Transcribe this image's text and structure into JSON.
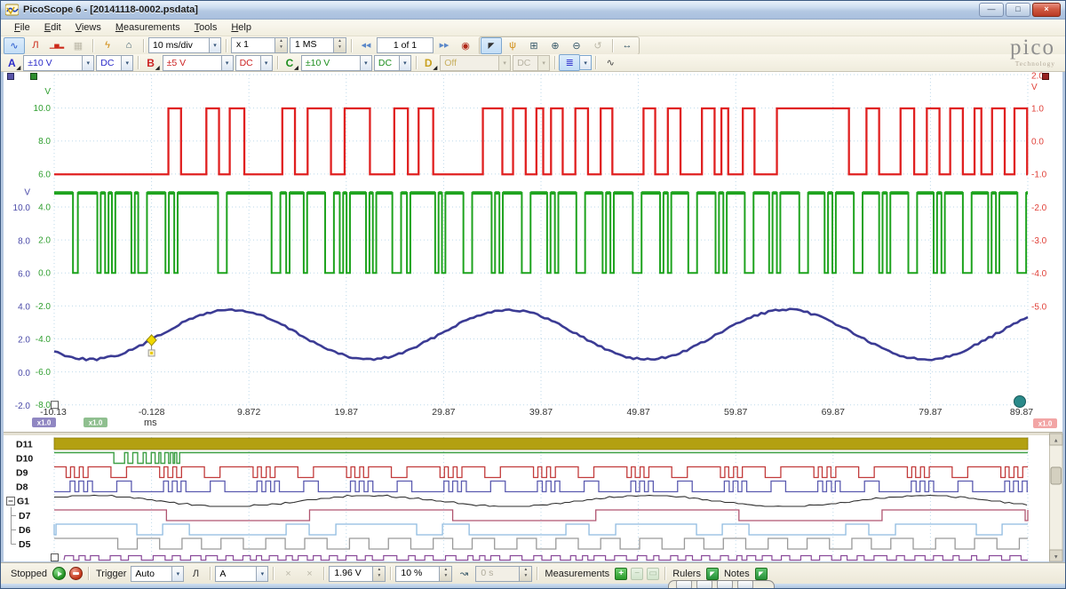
{
  "window": {
    "title": "PicoScope 6 - [20141118-0002.psdata]"
  },
  "brand": {
    "name": "pico",
    "sub": "Technology"
  },
  "menu": {
    "items": [
      "File",
      "Edit",
      "Views",
      "Measurements",
      "Tools",
      "Help"
    ]
  },
  "icons": {
    "scope_view": "∿",
    "persistence_view": "Л",
    "spectrum_view": "▁▅▂",
    "add_view": "▦",
    "connect_device": "ϟ",
    "home": "⌂",
    "prev_buffers": "◀◀",
    "next_buffers": "▶▶",
    "buffer_overview": "◉",
    "cursor": "◤",
    "hand": "ψ",
    "marquee_zoom": "⊞",
    "zoom_in": "⊕",
    "zoom_out": "⊖",
    "undo_zoom": "↺",
    "h_zoom": "↔",
    "digital_inputs": "≣",
    "signal_generator": "∿",
    "rising_edge": "Л",
    "wave_arrow": "↝",
    "ruler_tool": "×",
    "add": "+",
    "minus": "−",
    "box": "▭",
    "panel_open": "◤",
    "minimize": "—",
    "maximize": "□",
    "close": "×",
    "dropdown": "▾",
    "spin_up": "▴",
    "spin_down": "▾"
  },
  "toolbar": {
    "timebase": "10 ms/div",
    "zoom_factor": "x 1",
    "sample_count": "1 MS",
    "buffer_position": "1 of 1"
  },
  "channels": [
    {
      "id": "A",
      "range": "±10 V",
      "coupling": "DC",
      "color": "#2a2ac8",
      "enabled": true
    },
    {
      "id": "B",
      "range": "±5 V",
      "coupling": "DC",
      "color": "#cc2222",
      "enabled": true
    },
    {
      "id": "C",
      "range": "±10 V",
      "coupling": "DC",
      "color": "#1e8e1e",
      "enabled": true
    },
    {
      "id": "D",
      "range": "Off",
      "coupling": "DC",
      "color": "#c8a01e",
      "enabled": false
    }
  ],
  "statusbar": {
    "stopped_label": "Stopped",
    "trigger_label": "Trigger",
    "trigger_mode": "Auto",
    "trigger_source": "A",
    "trigger_level": "1.96 V",
    "pretrigger": "10 %",
    "post_trigger": "0 s",
    "measurements_label": "Measurements",
    "rulers_label": "Rulers",
    "notes_label": "Notes"
  },
  "chart_data": {
    "type": "line",
    "title": "",
    "x_unit": "ms",
    "x_range_ms": [
      -10.13,
      89.87
    ],
    "x_ticks": [
      "-10.13",
      "-0.128",
      "9.872",
      "19.87",
      "29.87",
      "39.87",
      "49.87",
      "59.87",
      "69.87",
      "79.87",
      "89.87"
    ],
    "grid": true,
    "y_axes": [
      {
        "id": "A",
        "unit": "V",
        "color": "#4a4aa8",
        "side": "left-outer",
        "ticks": [
          10,
          8,
          6,
          4,
          2,
          0,
          -2
        ]
      },
      {
        "id": "C",
        "unit": "V",
        "color": "#2e9e2e",
        "side": "left-inner",
        "ticks": [
          10,
          8,
          6,
          4,
          2,
          0,
          -2,
          -4,
          -6,
          -8
        ]
      },
      {
        "id": "B",
        "unit": "V",
        "color": "#e04038",
        "side": "right",
        "ticks": [
          2,
          1,
          0,
          -1,
          -2,
          -3,
          -4,
          -5
        ]
      }
    ],
    "zoom_badges": {
      "left": [
        "x1.0",
        "x1.0"
      ],
      "left_colors": [
        "#9087c2",
        "#8fbf8f"
      ],
      "right": "x1.0",
      "right_color": "#f2a5a5"
    },
    "series": [
      {
        "name": "Channel B",
        "axis": "B",
        "color": "#e02020",
        "kind": "pulse-high",
        "idle_v": -1,
        "high_v": 1,
        "pulses_ms": [
          [
            1.6,
            2.9
          ],
          [
            5.5,
            6.8
          ],
          [
            7.9,
            9.4
          ],
          [
            13.3,
            14.6
          ],
          [
            15.9,
            18.3
          ],
          [
            19.7,
            22.3
          ],
          [
            24.8,
            26.2
          ],
          [
            27.3,
            28.8
          ],
          [
            33.9,
            35.9
          ],
          [
            37.0,
            38.3
          ],
          [
            39.4,
            40.1
          ],
          [
            40.9,
            42.1
          ],
          [
            43.4,
            44.7
          ],
          [
            46.0,
            47.2
          ],
          [
            50.4,
            51.6
          ],
          [
            52.9,
            54.2
          ],
          [
            56.4,
            57.7
          ],
          [
            58.4,
            59.1
          ],
          [
            60.6,
            61.8
          ],
          [
            64.1,
            71.5
          ],
          [
            73.3,
            74.6
          ],
          [
            76.8,
            78.2
          ],
          [
            79.5,
            80.8
          ],
          [
            81.9,
            83.2
          ],
          [
            84.4,
            85.1
          ],
          [
            86.2,
            87.5
          ],
          [
            88.5,
            89.8
          ]
        ]
      },
      {
        "name": "Channel C",
        "axis": "C",
        "color": "#1ea31e",
        "kind": "pulse-low",
        "idle_v": 4.85,
        "low_v": 0,
        "low_pulses_ms": [
          [
            -8.2,
            0.5
          ],
          [
            -5.7,
            0.35
          ],
          [
            -4.9,
            0.35
          ],
          [
            -4.2,
            0.35
          ],
          [
            -2.2,
            0.35
          ],
          [
            -1.5,
            0.9
          ],
          [
            1.3,
            0.35
          ],
          [
            2.2,
            0.35
          ],
          [
            6.7,
            0.9
          ],
          [
            12.2,
            0.9
          ],
          [
            13.7,
            0.35
          ],
          [
            15.5,
            0.35
          ],
          [
            17.7,
            0.9
          ],
          [
            19.2,
            0.35
          ],
          [
            19.9,
            0.35
          ],
          [
            21.9,
            0.35
          ],
          [
            22.6,
            0.35
          ],
          [
            24.6,
            0.9
          ],
          [
            26.1,
            0.35
          ],
          [
            29.0,
            0.35
          ],
          [
            29.7,
            0.35
          ],
          [
            31.9,
            0.9
          ],
          [
            34.8,
            0.35
          ],
          [
            35.6,
            0.35
          ],
          [
            37.9,
            0.9
          ],
          [
            40.5,
            0.35
          ],
          [
            41.3,
            0.35
          ],
          [
            43.5,
            0.9
          ],
          [
            46.2,
            0.35
          ],
          [
            47.0,
            0.35
          ],
          [
            49.3,
            0.9
          ],
          [
            52.1,
            0.35
          ],
          [
            52.9,
            0.35
          ],
          [
            55.0,
            0.9
          ],
          [
            57.8,
            0.35
          ],
          [
            58.6,
            0.35
          ],
          [
            60.8,
            0.9
          ],
          [
            63.3,
            0.35
          ],
          [
            64.1,
            0.35
          ],
          [
            66.4,
            0.9
          ],
          [
            69.0,
            0.35
          ],
          [
            69.8,
            0.35
          ],
          [
            72.0,
            0.9
          ],
          [
            74.6,
            0.35
          ],
          [
            75.4,
            0.35
          ],
          [
            77.6,
            0.9
          ],
          [
            80.2,
            0.35
          ],
          [
            81.0,
            0.35
          ],
          [
            83.2,
            0.9
          ],
          [
            85.8,
            0.35
          ],
          [
            86.6,
            0.35
          ],
          [
            88.8,
            0.9
          ]
        ]
      },
      {
        "name": "Channel A",
        "axis": "A",
        "color": "#3b3b94",
        "kind": "sine",
        "offset_v": 2.3,
        "amplitude_v": 1.5,
        "period_ms": 28.56,
        "rising_zero_ms": 0.82
      }
    ],
    "trigger": {
      "source": "A",
      "time_ms": -0.13,
      "level_v": 1.96,
      "marker_color": "#f0d800"
    }
  },
  "digital": {
    "channels": [
      {
        "label": "D11",
        "color": "#b3a011",
        "render": "band"
      },
      {
        "label": "D10",
        "color": "#3fa046",
        "render": "burst",
        "burst_ms": [
          -4.0,
          3.0
        ]
      },
      {
        "label": "D9",
        "color": "#c23b3b",
        "render": "pulses",
        "idle": "high",
        "period_ms": 9.6,
        "phase_ms": -8.9,
        "motif": [
          [
            0,
            0.45
          ],
          [
            0.85,
            0.5
          ],
          [
            1.75,
            0.5
          ],
          [
            4.6,
            1.6
          ]
        ]
      },
      {
        "label": "D8",
        "color": "#5b5bb0",
        "render": "pulses",
        "idle": "low",
        "period_ms": 9.6,
        "phase_ms": -8.5,
        "motif": [
          [
            0,
            0.5
          ],
          [
            0.9,
            0.5
          ],
          [
            1.8,
            0.5
          ],
          [
            4.8,
            1.5
          ]
        ]
      },
      {
        "label": "G1",
        "color": "#2b2b2b",
        "render": "analog",
        "group": true,
        "period_ms": 28.56,
        "phase_ms": 0.82
      },
      {
        "label": "D7",
        "color": "#b05570",
        "render": "pulses",
        "indent": true,
        "idle": "high",
        "period_ms": 29.4,
        "phase_ms": 1.4,
        "motif": [
          [
            0,
            14.7
          ]
        ]
      },
      {
        "label": "D6",
        "color": "#8fbbe0",
        "render": "pulses",
        "indent": true,
        "idle": "high",
        "period_ms": 28.74,
        "phase_ms": -1.64,
        "motif": [
          [
            0,
            2.65
          ],
          [
            5.39,
            9.94
          ],
          [
            17.7,
            2.74
          ]
        ]
      },
      {
        "label": "D5",
        "color": "#9a9a9a",
        "render": "pulses",
        "indent": true,
        "idle": "high",
        "absolute": true,
        "motif": [
          [
            -3.6,
            2.0
          ],
          [
            0.7,
            2.3
          ],
          [
            5.0,
            2.0
          ],
          [
            9.3,
            2.3
          ],
          [
            13.6,
            2.0
          ],
          [
            17.9,
            2.3
          ],
          [
            22.2,
            2.0
          ],
          [
            26.5,
            2.3
          ],
          [
            30.8,
            2.0
          ],
          [
            35.1,
            2.3
          ],
          [
            39.4,
            2.0
          ],
          [
            43.7,
            2.3
          ],
          [
            48.0,
            2.0
          ],
          [
            52.3,
            2.3
          ],
          [
            56.6,
            2.0
          ],
          [
            60.9,
            2.3
          ],
          [
            65.2,
            2.0
          ],
          [
            69.5,
            2.3
          ],
          [
            73.8,
            2.0
          ],
          [
            78.1,
            2.3
          ],
          [
            82.4,
            2.0
          ],
          [
            86.7,
            2.3
          ]
        ]
      }
    ],
    "partial_channel_color": "#8a4a9a"
  }
}
